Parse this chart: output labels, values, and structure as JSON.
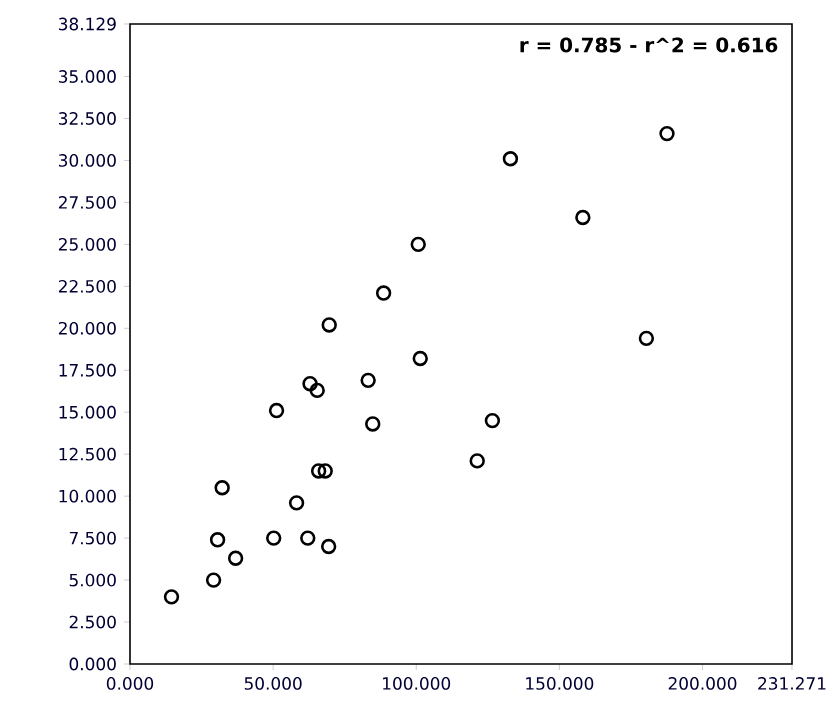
{
  "chart_data": {
    "type": "scatter",
    "annotations": [
      "r = 0.785 - r^2 = 0.616"
    ],
    "x": [
      14.5,
      29.2,
      30.6,
      36.9,
      32.2,
      50.2,
      51.2,
      58.2,
      62.1,
      69.4,
      62.9,
      65.4,
      65.9,
      68.2,
      83.2,
      84.8,
      101.4,
      121.3,
      126.6,
      180.4,
      69.6,
      88.6,
      100.7,
      132.9,
      158.2,
      187.6
    ],
    "values": [
      4.0,
      5.0,
      7.4,
      6.3,
      10.5,
      7.5,
      15.1,
      9.6,
      7.5,
      7.0,
      16.7,
      16.3,
      11.5,
      11.5,
      16.9,
      14.3,
      18.2,
      12.1,
      14.5,
      19.4,
      20.2,
      22.1,
      25.0,
      30.1,
      26.6,
      31.6
    ],
    "color": "#000000",
    "marker": "circle",
    "xlim": [
      0,
      231.271
    ],
    "ylim": [
      0,
      38.129
    ],
    "xticks": [
      {
        "value": 0,
        "label": "0.000"
      },
      {
        "value": 50,
        "label": "50.000"
      },
      {
        "value": 100,
        "label": "100.000"
      },
      {
        "value": 150,
        "label": "150.000"
      },
      {
        "value": 200,
        "label": "200.000"
      },
      {
        "value": 231.271,
        "label": "231.271"
      }
    ],
    "yticks": [
      {
        "value": 0,
        "label": "0.000"
      },
      {
        "value": 2.5,
        "label": "2.500"
      },
      {
        "value": 5,
        "label": "5.000"
      },
      {
        "value": 7.5,
        "label": "7.500"
      },
      {
        "value": 10,
        "label": "10.000"
      },
      {
        "value": 12.5,
        "label": "12.500"
      },
      {
        "value": 15,
        "label": "15.000"
      },
      {
        "value": 17.5,
        "label": "17.500"
      },
      {
        "value": 20,
        "label": "20.000"
      },
      {
        "value": 22.5,
        "label": "22.500"
      },
      {
        "value": 25,
        "label": "25.000"
      },
      {
        "value": 27.5,
        "label": "27.500"
      },
      {
        "value": 30,
        "label": "30.000"
      },
      {
        "value": 32.5,
        "label": "32.500"
      },
      {
        "value": 35,
        "label": "35.000"
      },
      {
        "value": 38.129,
        "label": "38.129"
      }
    ]
  }
}
